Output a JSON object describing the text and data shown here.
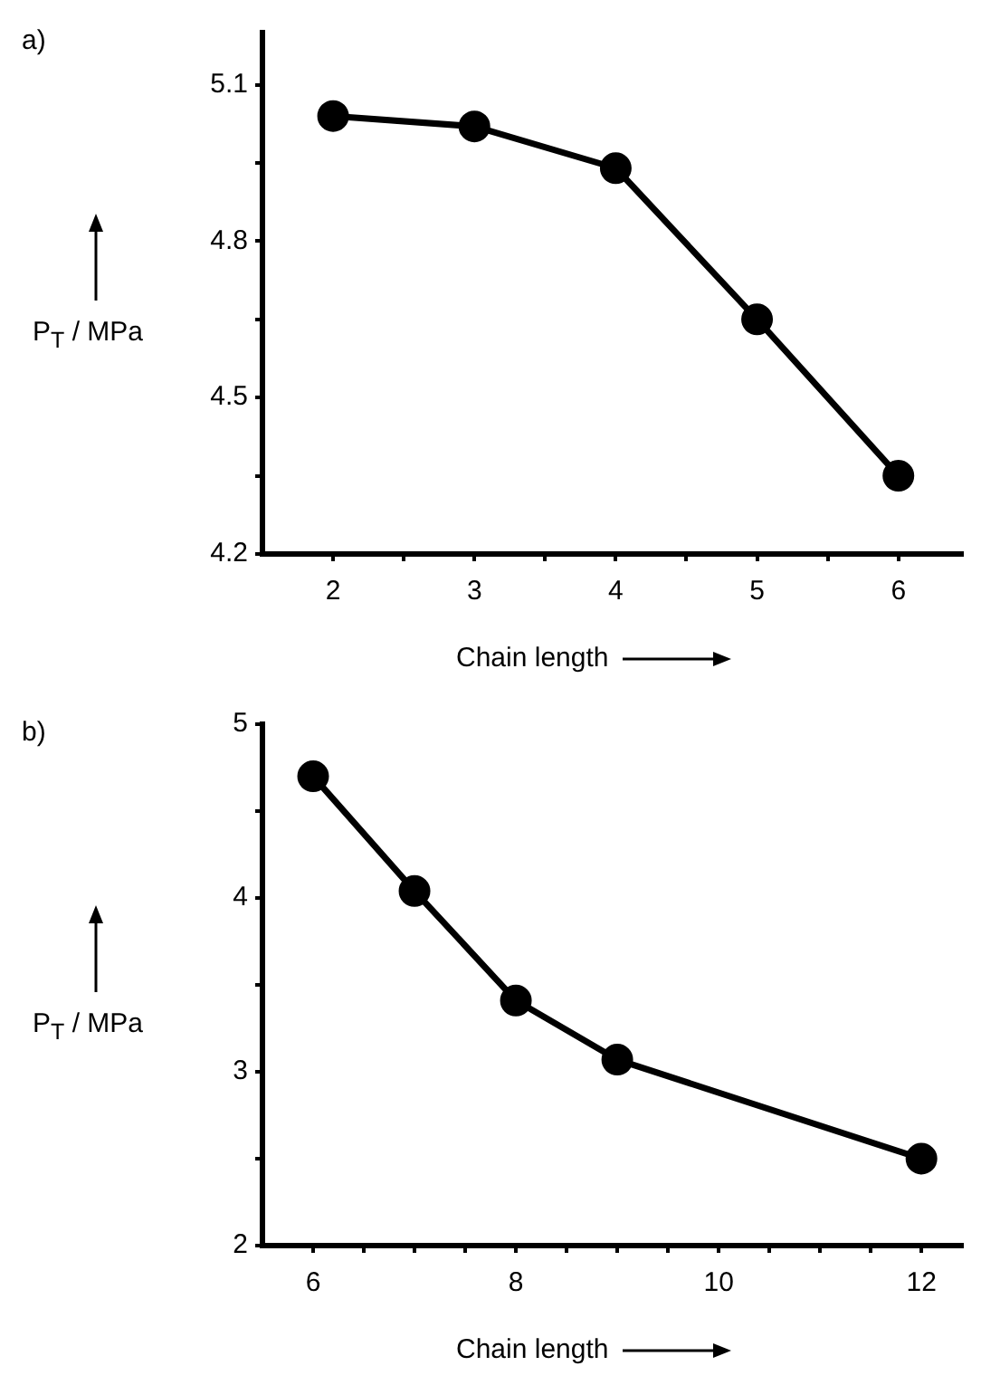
{
  "chart_data": [
    {
      "type": "line",
      "annotations": [
        "a)"
      ],
      "xlabel": "Chain length",
      "ylabel": "P$_{T}$ / MPa",
      "x": [
        2,
        3,
        4,
        5,
        6
      ],
      "values": [
        5.04,
        5.02,
        4.94,
        4.65,
        4.35
      ],
      "color": "#000000",
      "marker": "circle",
      "line_style": "solid",
      "xlim": [
        1.5,
        6.45
      ],
      "ylim": [
        4.2,
        5.2
      ],
      "xticks": [
        2,
        {
          "value": 2.5,
          "label": null
        },
        3,
        {
          "value": 3.5,
          "label": null
        },
        4,
        {
          "value": 4.5,
          "label": null
        },
        5,
        {
          "value": 5.5,
          "label": null
        },
        6
      ],
      "yticks": [
        {
          "value": 4.2,
          "label": "4.2"
        },
        {
          "value": 4.35,
          "label": null
        },
        4.5,
        {
          "value": 4.65,
          "label": null
        },
        4.8,
        {
          "value": 4.95,
          "label": null
        },
        5.1
      ]
    },
    {
      "type": "line",
      "annotations": [
        "b)"
      ],
      "xlabel": "Chain length",
      "ylabel": "P$_{T}$ / MPa",
      "x": [
        6,
        7,
        8,
        9,
        12
      ],
      "values": [
        4.7,
        4.04,
        3.41,
        3.07,
        2.5
      ],
      "color": "#000000",
      "marker": "circle",
      "line_style": "solid",
      "xlim": [
        5.5,
        12.4
      ],
      "ylim": [
        2,
        5
      ],
      "xticks": [
        6,
        {
          "value": 6.5,
          "label": null
        },
        {
          "value": 7,
          "label": null
        },
        {
          "value": 7.5,
          "label": null
        },
        8,
        {
          "value": 8.5,
          "label": null
        },
        {
          "value": 9,
          "label": null
        },
        {
          "value": 9.5,
          "label": null
        },
        10,
        {
          "value": 10.5,
          "label": null
        },
        {
          "value": 11,
          "label": null
        },
        {
          "value": 11.5,
          "label": null
        },
        12
      ],
      "yticks": [
        2,
        {
          "value": 2.5,
          "label": null
        },
        3,
        {
          "value": 3.5,
          "label": null
        },
        4,
        {
          "value": 4.5,
          "label": null
        },
        5
      ]
    }
  ]
}
